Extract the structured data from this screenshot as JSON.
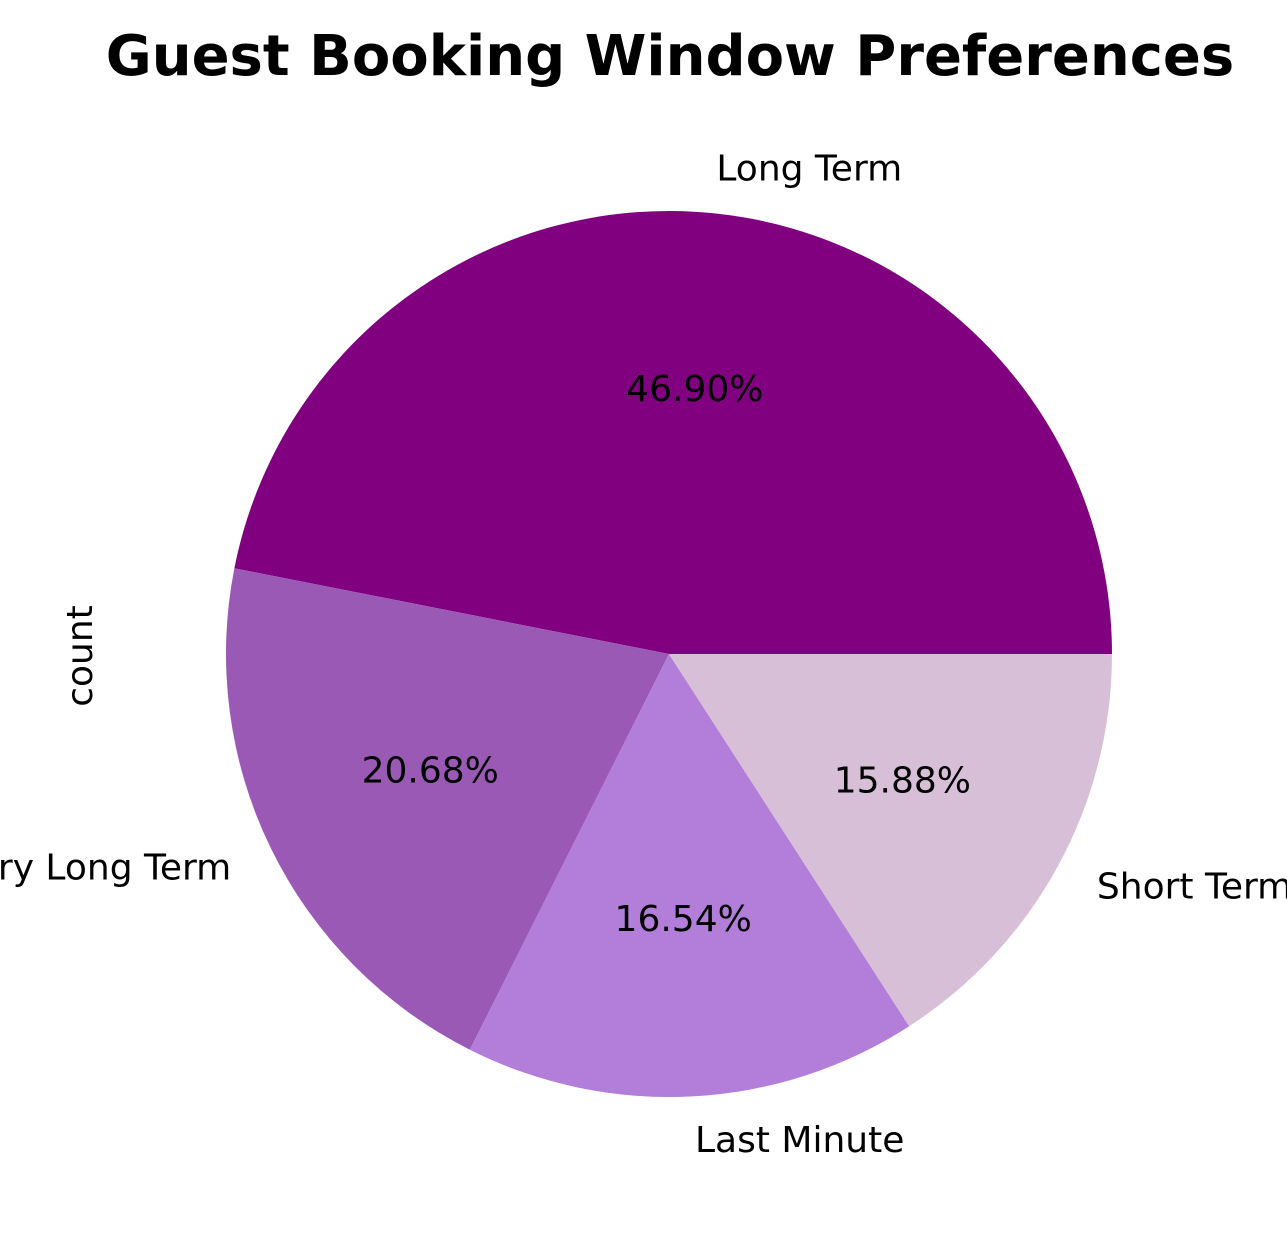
{
  "chart_data": {
    "type": "pie",
    "title": "Guest Booking Window Preferences",
    "ylabel": "count",
    "start_angle_deg": 0,
    "direction": "counterclockwise",
    "slices": [
      {
        "label": "Long Term",
        "value": 46.9,
        "pct_text": "46.90%",
        "color": "#800080"
      },
      {
        "label": "Very Long Term",
        "value": 20.68,
        "pct_text": "20.68%",
        "color": "#9b59b6"
      },
      {
        "label": "Last Minute",
        "value": 16.54,
        "pct_text": "16.54%",
        "color": "#b27ed9"
      },
      {
        "label": "Short Term",
        "value": 15.88,
        "pct_text": "15.88%",
        "color": "#d8bfd8"
      }
    ]
  }
}
